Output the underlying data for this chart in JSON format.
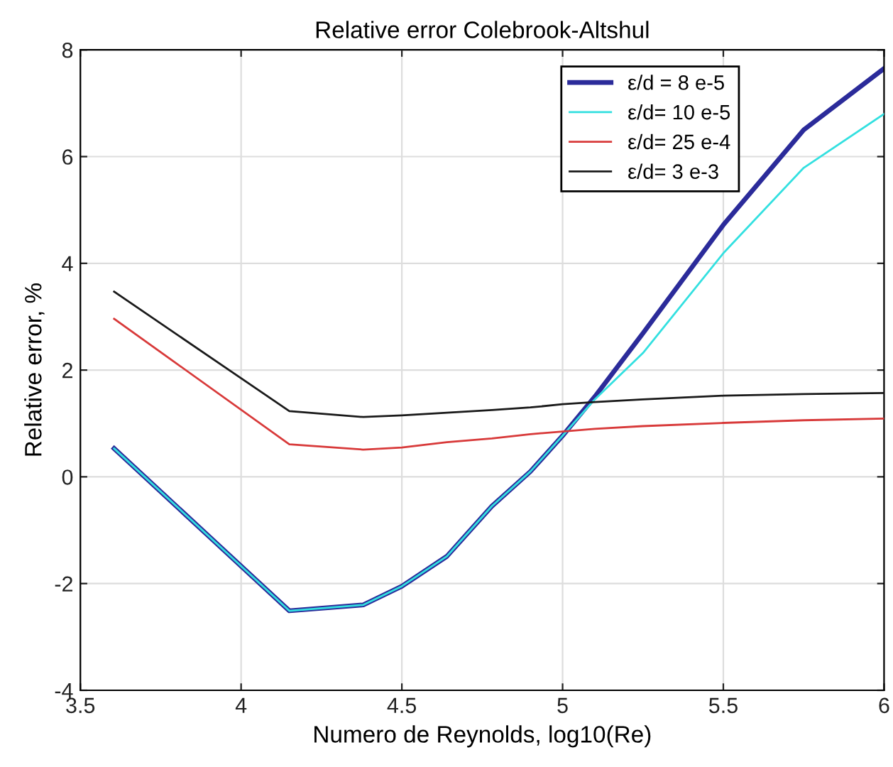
{
  "chart_data": {
    "type": "line",
    "title": "Relative error Colebrook-Altshul",
    "xlabel": "Numero de Reynolds, log10(Re)",
    "ylabel": "Relative error, %",
    "x": [
      3.605,
      4.15,
      4.38,
      4.5,
      4.64,
      4.78,
      4.9,
      5.0,
      5.1,
      5.25,
      5.5,
      5.75,
      6.0
    ],
    "series": [
      {
        "name": "ε/d = 8 e-5",
        "color": "#2b2b9a",
        "values": [
          0.53,
          -2.51,
          -2.4,
          -2.05,
          -1.49,
          -0.55,
          0.1,
          0.77,
          1.5,
          2.69,
          4.72,
          6.5,
          7.65
        ]
      },
      {
        "name": "ε/d= 10 e-5",
        "color": "#33e0e0",
        "values": [
          0.53,
          -2.51,
          -2.4,
          -2.05,
          -1.49,
          -0.55,
          0.1,
          0.77,
          1.45,
          2.32,
          4.19,
          5.79,
          6.8
        ]
      },
      {
        "name": "ε/d= 25 e-4",
        "color": "#d83a3a",
        "values": [
          2.96,
          0.61,
          0.51,
          0.55,
          0.65,
          0.72,
          0.8,
          0.85,
          0.9,
          0.95,
          1.01,
          1.06,
          1.09
        ]
      },
      {
        "name": "ε/d= 3 e-3",
        "color": "#1a1a1a",
        "values": [
          3.47,
          1.23,
          1.12,
          1.15,
          1.2,
          1.25,
          1.3,
          1.36,
          1.4,
          1.45,
          1.52,
          1.55,
          1.57
        ]
      }
    ],
    "xlim": [
      3.5,
      6
    ],
    "xticks": [
      3.5,
      4,
      4.5,
      5,
      5.5,
      6
    ],
    "ylim": [
      -4,
      8
    ],
    "yticks": [
      -4,
      -2,
      0,
      2,
      4,
      6,
      8
    ],
    "grid": true,
    "legend": "top right",
    "marker": "none",
    "line_style": "solid"
  }
}
